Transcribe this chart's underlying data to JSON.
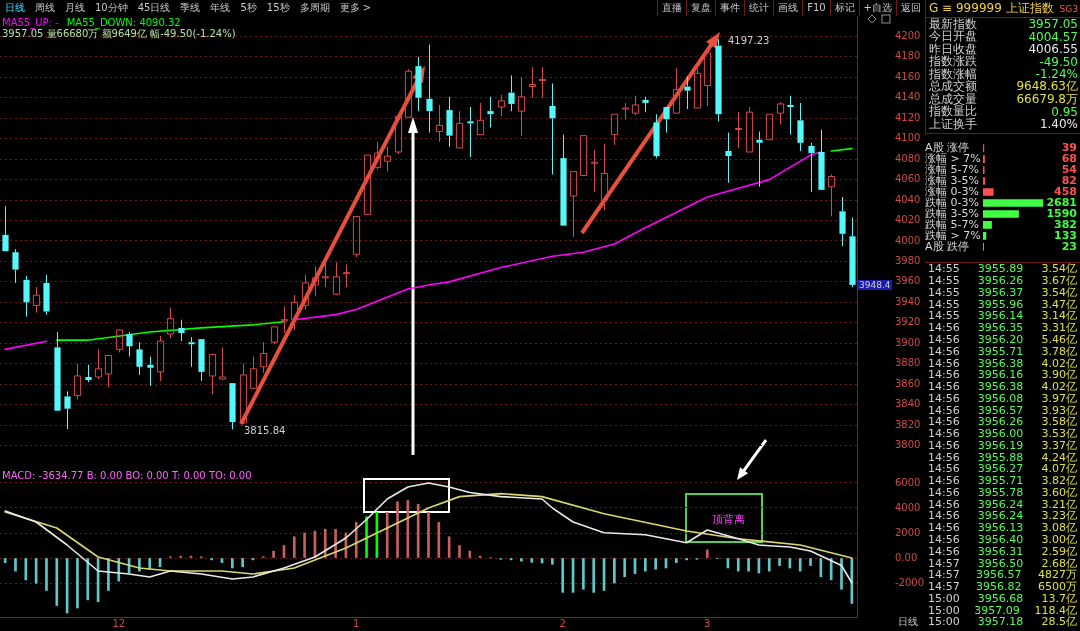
{
  "chart_data": [
    {
      "type": "other",
      "annotations": [
        "日线",
        "周线",
        "月线",
        "10分钟",
        "45日线",
        "季线",
        "年线",
        "5秒",
        "15秒",
        "多周期",
        "更多 >"
      ]
    },
    {
      "type": "other",
      "annotations": [
        "直播",
        "复盘",
        "事件",
        "统计",
        "画线",
        "F10",
        "标记",
        "+自选",
        "返回"
      ]
    },
    {
      "type": "candlestick",
      "subtitle": "3957.05 量66680万 额9649亿 幅-49.50(-1.24%)",
      "categories": [
        null,
        null,
        null,
        null,
        null,
        null,
        null,
        null,
        null,
        null,
        null,
        "12",
        null,
        null,
        null,
        null,
        null,
        null,
        null,
        null,
        null,
        null,
        null,
        null,
        null,
        null,
        null,
        null,
        null,
        null,
        null,
        null,
        null,
        null,
        "1",
        null,
        null,
        null,
        null,
        null,
        null,
        null,
        null,
        null,
        null,
        null,
        null,
        null,
        null,
        null,
        null,
        null,
        null,
        null,
        "2",
        null,
        null,
        null,
        null,
        null,
        null,
        null,
        null,
        null,
        null,
        null,
        null,
        null,
        "3",
        null,
        null,
        null,
        null,
        null,
        null,
        null,
        null,
        null,
        null,
        null,
        null,
        null,
        null
      ],
      "ohlc": [
        [
          4006,
          4034,
          3990,
          3990
        ],
        [
          3989,
          3992,
          3959,
          3972
        ],
        [
          3962,
          3966,
          3926,
          3940
        ],
        [
          3937,
          3955,
          3930,
          3947
        ],
        [
          3959,
          3967,
          3928,
          3931
        ],
        [
          3896,
          3911,
          3834,
          3834
        ],
        [
          3848,
          3853,
          3816,
          3836
        ],
        [
          3849,
          3880,
          3845,
          3868
        ],
        [
          3867,
          3879,
          3862,
          3864
        ],
        [
          3867,
          3894,
          3865,
          3875
        ],
        [
          3870,
          3888,
          3857,
          3888
        ],
        [
          3894,
          3913,
          3891,
          3913
        ],
        [
          3909,
          3911,
          3887,
          3897
        ],
        [
          3894,
          3901,
          3869,
          3877
        ],
        [
          3879,
          3887,
          3858,
          3876
        ],
        [
          3872,
          3907,
          3863,
          3902
        ],
        [
          3909,
          3935,
          3905,
          3924
        ],
        [
          3915,
          3923,
          3902,
          3910
        ],
        [
          3901,
          3906,
          3877,
          3899
        ],
        [
          3904,
          3904,
          3863,
          3872
        ],
        [
          3868,
          3889,
          3850,
          3889
        ],
        [
          3865,
          3896,
          3864,
          3867
        ],
        [
          3861,
          3861,
          3815.84,
          3823
        ],
        [
          3822,
          3880,
          3821,
          3869
        ],
        [
          3856,
          3887,
          3855,
          3875
        ],
        [
          3877,
          3901,
          3871,
          3890
        ],
        [
          3901,
          3916,
          3899,
          3916
        ],
        [
          3922,
          3936,
          3910,
          3923
        ],
        [
          3923,
          3947,
          3913,
          3940
        ],
        [
          3937,
          3967,
          3933,
          3959
        ],
        [
          3957,
          3975,
          3946,
          3964
        ],
        [
          3964,
          3978,
          3955,
          3965
        ],
        [
          3948,
          3979,
          3947,
          3965
        ],
        [
          3968,
          3977,
          3955,
          3969
        ],
        [
          3987,
          4024,
          3984,
          4024
        ],
        [
          4026,
          4084,
          4026,
          4084
        ],
        [
          4072,
          4097,
          4070,
          4086
        ],
        [
          4078,
          4092,
          4068,
          4083
        ],
        [
          4087,
          4122,
          4085,
          4122
        ],
        [
          4121,
          4168,
          4121,
          4166
        ],
        [
          4171,
          4180,
          4127,
          4140
        ],
        [
          4139,
          4192,
          4106,
          4127
        ],
        [
          4107,
          4133,
          4097,
          4113
        ],
        [
          4128,
          4141,
          4092,
          4103
        ],
        [
          4091,
          4127,
          4091,
          4115
        ],
        [
          4117,
          4131,
          4082,
          4115
        ],
        [
          4104,
          4135,
          4104,
          4118
        ],
        [
          4127,
          4141,
          4111,
          4124
        ],
        [
          4131,
          4143,
          4122,
          4137
        ],
        [
          4145,
          4162,
          4127,
          4134
        ],
        [
          4127,
          4160,
          4103,
          4141
        ],
        [
          4151,
          4170,
          4140,
          4153
        ],
        [
          4157,
          4170,
          4140,
          4158
        ],
        [
          4132,
          4154,
          4065,
          4120
        ],
        [
          4081,
          4104,
          4015,
          4015
        ],
        [
          4044,
          4068,
          4004,
          4068
        ],
        [
          4064,
          4103,
          4064,
          4103
        ],
        [
          4076,
          4089,
          4048,
          4077
        ],
        [
          4040,
          4095,
          4030,
          4066
        ],
        [
          4104,
          4124,
          4094,
          4124
        ],
        [
          4129,
          4135,
          4119,
          4130
        ],
        [
          4125,
          4142,
          4123,
          4133
        ],
        [
          4138,
          4141,
          4126,
          4135
        ],
        [
          4116,
          4124,
          4081,
          4083
        ],
        [
          4131,
          4131,
          4106,
          4119
        ],
        [
          4125,
          4169,
          4125,
          4148
        ],
        [
          4151,
          4161,
          4129,
          4147
        ],
        [
          4130,
          4168,
          4130,
          4164
        ],
        [
          4152,
          4189,
          4132,
          4184
        ],
        [
          4191,
          4197.23,
          4117,
          4124
        ],
        [
          4088,
          4106,
          4057,
          4083
        ],
        [
          4109,
          4126,
          4091,
          4110
        ],
        [
          4087,
          4131,
          4087,
          4126
        ],
        [
          4099,
          4107,
          4053,
          4096
        ],
        [
          4099,
          4124,
          4099,
          4124
        ],
        [
          4125,
          4136,
          4114,
          4134
        ],
        [
          4133,
          4142,
          4104,
          4131
        ],
        [
          4118,
          4135,
          4088,
          4096
        ],
        [
          4093,
          4096,
          4048,
          4086
        ],
        [
          4087,
          4109,
          4050,
          4050
        ],
        [
          4053,
          4065,
          4024,
          4063
        ],
        [
          4029,
          4043,
          3995,
          4007
        ],
        [
          4004.57,
          4023,
          3955,
          3957.05
        ]
      ],
      "series": [
        {
          "type": "line",
          "name": "MA55_UP: -",
          "color": "#ff00ff",
          "values": [
            3894,
            null,
            null,
            null,
            3902,
            null,
            null,
            null,
            null,
            null,
            null,
            null,
            null,
            null,
            null,
            null,
            null,
            null,
            null,
            null,
            null,
            null,
            null,
            null,
            null,
            null,
            null,
            null,
            3923,
            null,
            null,
            null,
            3928,
            null,
            3933,
            null,
            null,
            null,
            null,
            3953,
            null,
            3957,
            null,
            3960,
            null,
            null,
            null,
            null,
            3974,
            null,
            null,
            null,
            null,
            3985,
            null,
            null,
            3989,
            null,
            null,
            3997,
            null,
            null,
            4013,
            null,
            null,
            null,
            null,
            null,
            4043,
            null,
            null,
            null,
            null,
            null,
            4060,
            null,
            null,
            null,
            4084,
            4087,
            null,
            null,
            null
          ]
        },
        {
          "type": "line",
          "name": "MA55_DOWN: 4090.32",
          "color": "#00ff00",
          "values": [
            null,
            null,
            null,
            null,
            null,
            3903,
            null,
            null,
            3903,
            null,
            null,
            null,
            null,
            null,
            3911,
            null,
            null,
            null,
            null,
            3915,
            null,
            null,
            null,
            null,
            3918,
            null,
            null,
            3921,
            null,
            null,
            null,
            null,
            null,
            null,
            null,
            null,
            null,
            null,
            null,
            null,
            null,
            null,
            null,
            null,
            null,
            null,
            null,
            null,
            null,
            null,
            null,
            null,
            null,
            null,
            null,
            null,
            null,
            null,
            null,
            null,
            null,
            null,
            null,
            null,
            null,
            null,
            null,
            null,
            null,
            null,
            null,
            null,
            null,
            null,
            null,
            null,
            null,
            null,
            null,
            null,
            4088,
            null,
            4090.32
          ]
        }
      ],
      "ylim": [
        3778,
        4220
      ],
      "yticks": [
        3800,
        3820,
        3840,
        3860,
        3880,
        3900,
        3920,
        3940,
        3960,
        3980,
        4000,
        4020,
        4040,
        4060,
        4080,
        4100,
        4120,
        4140,
        4160,
        4180,
        4200
      ],
      "grid": "y",
      "legend": "top left",
      "tick_labels": "y",
      "annotations": [
        "3815.84",
        "4197.23",
        "3948.4"
      ]
    },
    {
      "type": "bar",
      "title": "MACD: -3634.77  B: 0.00  BO: 0.00  T: 0.00  TO: 0.00",
      "categories": [
        null,
        null,
        null,
        null,
        null,
        null,
        null,
        null,
        null,
        null,
        null,
        "12",
        null,
        null,
        null,
        null,
        null,
        null,
        null,
        null,
        null,
        null,
        null,
        null,
        null,
        null,
        null,
        null,
        null,
        null,
        null,
        null,
        null,
        null,
        "1",
        null,
        null,
        null,
        null,
        null,
        null,
        null,
        null,
        null,
        null,
        null,
        null,
        null,
        null,
        null,
        null,
        null,
        null,
        null,
        "2",
        null,
        null,
        null,
        null,
        null,
        null,
        null,
        null,
        null,
        null,
        null,
        null,
        null,
        "3",
        null,
        null,
        null,
        null,
        null,
        null,
        null,
        null,
        null,
        null,
        null,
        null,
        null,
        null
      ],
      "series": [
        {
          "type": "bar",
          "colors": [
            "#60c8c8",
            "#60c8c8",
            "#60c8c8",
            "#60c8c8",
            "#60c8c8",
            "#60c8c8",
            "#60c8c8",
            "#60c8c8",
            "#60c8c8",
            "#60c8c8",
            "#60c8c8",
            "#60c8c8",
            "#60c8c8",
            "#60c8c8",
            "#60c8c8",
            "#60c8c8",
            "#c86060",
            "#c86060",
            "#c86060",
            "#c86060",
            "#60c8c8",
            "#60c8c8",
            "#60c8c8",
            "#60c8c8",
            "#60c8c8",
            "#c86060",
            "#c86060",
            "#c86060",
            "#c86060",
            "#c86060",
            "#c86060",
            "#c86060",
            "#c86060",
            "#c86060",
            "#c86060",
            "#00ff00",
            "#00ff00",
            "#c86060",
            "#c86060",
            "#c86060",
            "#c86060",
            "#c86060",
            "#c86060",
            "#c86060",
            "#c86060",
            "#c86060",
            "#c86060",
            "#c86060",
            "#60c8c8",
            "#60c8c8",
            "#60c8c8",
            "#60c8c8",
            "#60c8c8",
            "#60c8c8",
            "#60c8c8",
            "#60c8c8",
            "#60c8c8",
            "#60c8c8",
            "#60c8c8",
            "#60c8c8",
            "#60c8c8",
            "#60c8c8",
            "#60c8c8",
            "#60c8c8",
            "#60c8c8",
            "#60c8c8",
            "#60c8c8",
            "#60c8c8",
            "#c86060",
            "#60c8c8",
            "#60c8c8",
            "#60c8c8",
            "#60c8c8",
            "#60c8c8",
            "#60c8c8",
            "#60c8c8",
            "#60c8c8",
            "#60c8c8",
            "#60c8c8",
            "#60c8c8",
            "#60c8c8",
            "#60c8c8",
            "#60c8c8"
          ],
          "values": [
            -370,
            -1050,
            -1750,
            -2020,
            -2600,
            -3800,
            -4400,
            -4000,
            -3350,
            -3500,
            -2600,
            -1850,
            -1200,
            -1050,
            -900,
            -700,
            100,
            150,
            150,
            100,
            -150,
            -370,
            -800,
            -700,
            -150,
            100,
            550,
            1000,
            1700,
            2000,
            2150,
            2300,
            2300,
            2000,
            2850,
            3300,
            3650,
            3650,
            4500,
            4600,
            4300,
            3650,
            2850,
            1700,
            1000,
            550,
            150,
            50,
            -100,
            -150,
            -250,
            -350,
            -400,
            -500,
            -2750,
            -2750,
            -2500,
            -2750,
            -2600,
            -2000,
            -1500,
            -1250,
            -1050,
            -900,
            -800,
            -370,
            -150,
            -100,
            650,
            -50,
            -800,
            -1050,
            -1050,
            -1200,
            -1050,
            -600,
            -800,
            -1050,
            -600,
            -1500,
            -1750,
            -2500,
            -3634.77
          ]
        },
        {
          "type": "line",
          "color": "#e8e8e8",
          "values": [
            3760,
            null,
            null,
            2880,
            null,
            null,
            1040,
            null,
            null,
            -1040,
            null,
            null,
            -1280,
            null,
            -1520,
            null,
            -1040,
            null,
            null,
            -1280,
            null,
            null,
            -1680,
            null,
            -1520,
            null,
            null,
            -800,
            null,
            null,
            80,
            null,
            null,
            1600,
            null,
            3080,
            null,
            4720,
            null,
            5680,
            null,
            6000,
            null,
            5680,
            null,
            5240,
            null,
            null,
            4910,
            null,
            null,
            null,
            4720,
            4000,
            null,
            2880,
            null,
            null,
            2020,
            null,
            null,
            null,
            1860,
            null,
            1540,
            null,
            1220,
            null,
            2240,
            null,
            null,
            1540,
            null,
            1040,
            null,
            null,
            880,
            null,
            560,
            null,
            null,
            -600,
            -1980
          ]
        },
        {
          "type": "line",
          "color": "#d8d870",
          "values": [
            3680,
            null,
            null,
            null,
            null,
            2400,
            null,
            null,
            null,
            80,
            null,
            null,
            null,
            -800,
            null,
            null,
            -1040,
            null,
            null,
            null,
            null,
            -1040,
            null,
            null,
            -1280,
            null,
            null,
            null,
            -800,
            null,
            null,
            null,
            null,
            800,
            null,
            null,
            null,
            2400,
            null,
            null,
            null,
            4000,
            null,
            null,
            4910,
            null,
            null,
            null,
            5150,
            null,
            null,
            null,
            4910,
            null,
            null,
            null,
            null,
            null,
            3540,
            null,
            null,
            null,
            null,
            null,
            null,
            null,
            2160,
            null,
            null,
            null,
            null,
            1540,
            null,
            null,
            null,
            null,
            null,
            1040,
            null,
            null,
            null,
            null,
            0
          ]
        }
      ],
      "ylim": [
        -4720,
        7200
      ],
      "yticks": [
        6000,
        4000,
        2000,
        {
          "value": 0,
          "label": "0.00"
        },
        -2000
      ],
      "grid": "y",
      "annotations": [
        "顶背离"
      ]
    },
    {
      "type": "other",
      "title": "G ≡ 999999 上证指数",
      "subtitle": "SG3",
      "annotations": [
        "最新指数 3957.05",
        "今日开盘 4004.57",
        "昨日收盘 4006.55",
        "指数涨跌 -49.50",
        "指数涨幅 -1.24%",
        "总成交额 9648.63亿",
        "总成交量 66679.8万",
        "指数量比 0.95",
        "上证换手 1.40%"
      ],
      "colors": [
        "#50ff50",
        "#50ff50",
        "#e8e8e8",
        "#50ff50",
        "#50ff50",
        "#e0e040",
        "#e0e040",
        "#50ff50",
        "#e8e8e8"
      ]
    },
    {
      "type": "bar",
      "orientation": "horizontal",
      "categories": [
        "A股 涨停",
        "涨幅 > 7%",
        "涨幅 5-7%",
        "涨幅 3-5%",
        "涨幅 0-3%",
        "跌幅 0-3%",
        "跌幅 3-5%",
        "跌幅 5-7%",
        "跌幅 > 7%",
        "A股 跌停"
      ],
      "values": [
        39,
        68,
        54,
        82,
        458,
        2681,
        1590,
        382,
        133,
        23
      ],
      "colors": [
        "#ff5050",
        "#ff5050",
        "#ff5050",
        "#ff5050",
        "#ff5050",
        "#40ff40",
        "#40ff40",
        "#40ff40",
        "#40ff40",
        "#40ff40"
      ],
      "data_labels": true
    },
    {
      "type": "other",
      "annotations": [
        "14:55 3955.89 3.54亿",
        "14:55 3956.26 3.67亿",
        "14:55 3956.37 3.54亿",
        "14:55 3955.96 3.47亿",
        "14:55 3956.14 3.14亿",
        "14:56 3956.35 3.31亿",
        "14:56 3956.20 5.46亿",
        "14:56 3955.71 3.78亿",
        "14:56 3956.38 4.02亿",
        "14:56 3956.16 3.90亿",
        "14:56 3956.38 4.02亿",
        "14:56 3956.08 3.97亿",
        "14:56 3956.57 3.93亿",
        "14:56 3956.26 3.58亿",
        "14:56 3956.00 3.53亿",
        "14:56 3956.19 3.37亿",
        "14:56 3955.88 4.24亿",
        "14:56 3956.27 4.07亿",
        "14:56 3955.71 3.82亿",
        "14:56 3955.78 3.60亿",
        "14:56 3956.24 3.21亿",
        "14:56 3956.24 3.23亿",
        "14:56 3956.13 3.08亿",
        "14:56 3956.40 3.00亿",
        "14:56 3956.31 2.59亿",
        "14:57 3956.50 2.68亿",
        "14:57 3956.57 4827万",
        "14:57 3956.82 6500万",
        "15:00 3956.68 13.7亿",
        "15:00 3957.09 118.4亿",
        "15:00 3957.18 28.5亿"
      ]
    },
    {
      "type": "other",
      "annotations": [
        "日线"
      ]
    }
  ]
}
